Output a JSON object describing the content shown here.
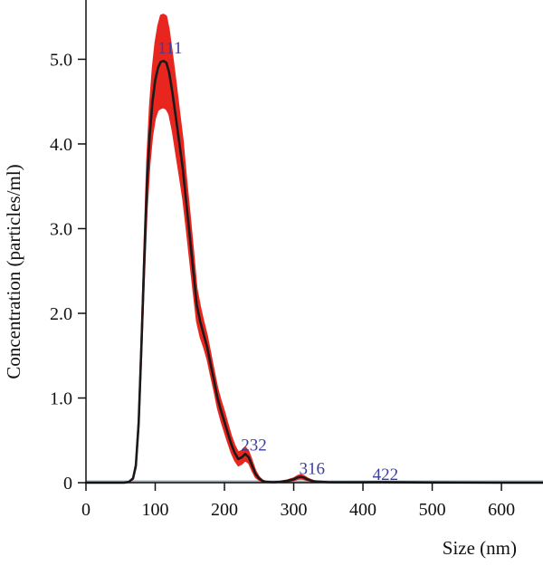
{
  "chart_data": {
    "type": "line",
    "xlabel": "Size (nm)",
    "ylabel": "Concentration (particles/ml)",
    "xlim": [
      0,
      660
    ],
    "ylim": [
      0,
      5.7
    ],
    "x_ticks": [
      0,
      100,
      200,
      300,
      400,
      500,
      600
    ],
    "x_tick_labels": [
      "0",
      "100",
      "200",
      "300",
      "400",
      "500",
      "600"
    ],
    "y_ticks": [
      0,
      1.0,
      2.0,
      3.0,
      4.0,
      5.0
    ],
    "y_tick_labels": [
      "0",
      "1.0",
      "2.0",
      "3.0",
      "4.0",
      "5.0"
    ],
    "grid": false,
    "legend": "none",
    "colors": {
      "mean_line": "#1a1a1a",
      "error_band": "#e8261f",
      "peak_label": "#3b3f9a",
      "baseline": "#9aa7b8"
    },
    "series": [
      {
        "x": [
          0,
          55,
          62,
          68,
          72,
          76,
          80,
          84,
          88,
          92,
          96,
          100,
          104,
          108,
          112,
          116,
          120,
          125,
          130,
          135,
          140,
          145,
          150,
          155,
          160,
          165,
          170,
          175,
          180,
          185,
          190,
          195,
          200,
          205,
          210,
          215,
          220,
          225,
          230,
          235,
          240,
          245,
          250,
          255,
          260,
          270,
          280,
          290,
          300,
          305,
          310,
          315,
          320,
          325,
          330,
          340,
          350,
          400,
          422,
          450,
          500,
          600,
          660
        ],
        "y": [
          0,
          0,
          0.01,
          0.05,
          0.2,
          0.7,
          1.6,
          2.6,
          3.5,
          4.1,
          4.5,
          4.75,
          4.9,
          4.97,
          4.98,
          4.96,
          4.85,
          4.6,
          4.3,
          4.0,
          3.7,
          3.3,
          2.9,
          2.5,
          2.1,
          1.9,
          1.75,
          1.6,
          1.4,
          1.2,
          1.0,
          0.85,
          0.72,
          0.58,
          0.45,
          0.35,
          0.28,
          0.3,
          0.34,
          0.3,
          0.2,
          0.1,
          0.05,
          0.02,
          0.01,
          0.005,
          0.01,
          0.02,
          0.04,
          0.06,
          0.07,
          0.06,
          0.04,
          0.025,
          0.015,
          0.01,
          0.005,
          0.004,
          0.006,
          0.004,
          0.002,
          0,
          0
        ],
        "err": [
          0,
          0,
          0,
          0.01,
          0.03,
          0.08,
          0.15,
          0.22,
          0.3,
          0.35,
          0.4,
          0.45,
          0.5,
          0.55,
          0.55,
          0.55,
          0.5,
          0.45,
          0.42,
          0.38,
          0.35,
          0.3,
          0.28,
          0.25,
          0.2,
          0.18,
          0.15,
          0.14,
          0.13,
          0.12,
          0.12,
          0.12,
          0.12,
          0.11,
          0.1,
          0.09,
          0.08,
          0.08,
          0.08,
          0.07,
          0.06,
          0.04,
          0.02,
          0.01,
          0.005,
          0.004,
          0.005,
          0.01,
          0.015,
          0.02,
          0.025,
          0.02,
          0.015,
          0.01,
          0.005,
          0.004,
          0.003,
          0.002,
          0.003,
          0.002,
          0.001,
          0,
          0
        ]
      }
    ],
    "annotations": [
      {
        "text": "111",
        "x": 111,
        "y": 5.05
      },
      {
        "text": "232",
        "x": 232,
        "y": 0.36
      },
      {
        "text": "316",
        "x": 316,
        "y": 0.08
      },
      {
        "text": "422",
        "x": 422,
        "y": 0.01
      }
    ]
  }
}
